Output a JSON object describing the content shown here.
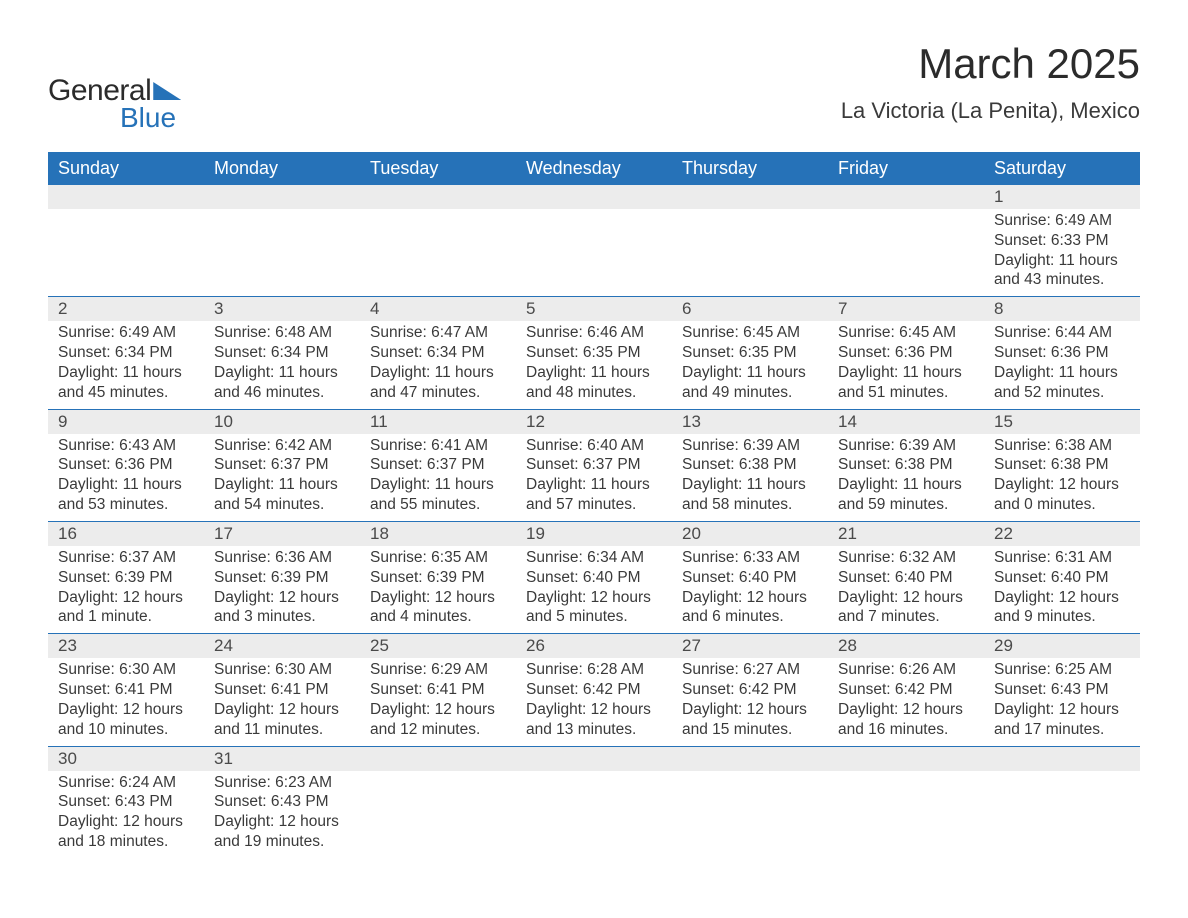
{
  "logo": {
    "word1": "General",
    "word2": "Blue"
  },
  "title": "March 2025",
  "location": "La Victoria (La Penita), Mexico",
  "colors": {
    "header_bg": "#2672b8",
    "header_text": "#ffffff",
    "band_bg": "#ececec",
    "body_text": "#3a3a3a",
    "rule": "#2672b8"
  },
  "typography": {
    "title_fontsize_pt": 32,
    "location_fontsize_pt": 17,
    "dayheader_fontsize_pt": 14,
    "daynum_fontsize_pt": 13,
    "body_fontsize_pt": 12
  },
  "day_headers": [
    "Sunday",
    "Monday",
    "Tuesday",
    "Wednesday",
    "Thursday",
    "Friday",
    "Saturday"
  ],
  "weeks": [
    [
      {
        "n": "",
        "sunrise": "",
        "sunset": "",
        "daylight": ""
      },
      {
        "n": "",
        "sunrise": "",
        "sunset": "",
        "daylight": ""
      },
      {
        "n": "",
        "sunrise": "",
        "sunset": "",
        "daylight": ""
      },
      {
        "n": "",
        "sunrise": "",
        "sunset": "",
        "daylight": ""
      },
      {
        "n": "",
        "sunrise": "",
        "sunset": "",
        "daylight": ""
      },
      {
        "n": "",
        "sunrise": "",
        "sunset": "",
        "daylight": ""
      },
      {
        "n": "1",
        "sunrise": "Sunrise: 6:49 AM",
        "sunset": "Sunset: 6:33 PM",
        "daylight": "Daylight: 11 hours and 43 minutes."
      }
    ],
    [
      {
        "n": "2",
        "sunrise": "Sunrise: 6:49 AM",
        "sunset": "Sunset: 6:34 PM",
        "daylight": "Daylight: 11 hours and 45 minutes."
      },
      {
        "n": "3",
        "sunrise": "Sunrise: 6:48 AM",
        "sunset": "Sunset: 6:34 PM",
        "daylight": "Daylight: 11 hours and 46 minutes."
      },
      {
        "n": "4",
        "sunrise": "Sunrise: 6:47 AM",
        "sunset": "Sunset: 6:34 PM",
        "daylight": "Daylight: 11 hours and 47 minutes."
      },
      {
        "n": "5",
        "sunrise": "Sunrise: 6:46 AM",
        "sunset": "Sunset: 6:35 PM",
        "daylight": "Daylight: 11 hours and 48 minutes."
      },
      {
        "n": "6",
        "sunrise": "Sunrise: 6:45 AM",
        "sunset": "Sunset: 6:35 PM",
        "daylight": "Daylight: 11 hours and 49 minutes."
      },
      {
        "n": "7",
        "sunrise": "Sunrise: 6:45 AM",
        "sunset": "Sunset: 6:36 PM",
        "daylight": "Daylight: 11 hours and 51 minutes."
      },
      {
        "n": "8",
        "sunrise": "Sunrise: 6:44 AM",
        "sunset": "Sunset: 6:36 PM",
        "daylight": "Daylight: 11 hours and 52 minutes."
      }
    ],
    [
      {
        "n": "9",
        "sunrise": "Sunrise: 6:43 AM",
        "sunset": "Sunset: 6:36 PM",
        "daylight": "Daylight: 11 hours and 53 minutes."
      },
      {
        "n": "10",
        "sunrise": "Sunrise: 6:42 AM",
        "sunset": "Sunset: 6:37 PM",
        "daylight": "Daylight: 11 hours and 54 minutes."
      },
      {
        "n": "11",
        "sunrise": "Sunrise: 6:41 AM",
        "sunset": "Sunset: 6:37 PM",
        "daylight": "Daylight: 11 hours and 55 minutes."
      },
      {
        "n": "12",
        "sunrise": "Sunrise: 6:40 AM",
        "sunset": "Sunset: 6:37 PM",
        "daylight": "Daylight: 11 hours and 57 minutes."
      },
      {
        "n": "13",
        "sunrise": "Sunrise: 6:39 AM",
        "sunset": "Sunset: 6:38 PM",
        "daylight": "Daylight: 11 hours and 58 minutes."
      },
      {
        "n": "14",
        "sunrise": "Sunrise: 6:39 AM",
        "sunset": "Sunset: 6:38 PM",
        "daylight": "Daylight: 11 hours and 59 minutes."
      },
      {
        "n": "15",
        "sunrise": "Sunrise: 6:38 AM",
        "sunset": "Sunset: 6:38 PM",
        "daylight": "Daylight: 12 hours and 0 minutes."
      }
    ],
    [
      {
        "n": "16",
        "sunrise": "Sunrise: 6:37 AM",
        "sunset": "Sunset: 6:39 PM",
        "daylight": "Daylight: 12 hours and 1 minute."
      },
      {
        "n": "17",
        "sunrise": "Sunrise: 6:36 AM",
        "sunset": "Sunset: 6:39 PM",
        "daylight": "Daylight: 12 hours and 3 minutes."
      },
      {
        "n": "18",
        "sunrise": "Sunrise: 6:35 AM",
        "sunset": "Sunset: 6:39 PM",
        "daylight": "Daylight: 12 hours and 4 minutes."
      },
      {
        "n": "19",
        "sunrise": "Sunrise: 6:34 AM",
        "sunset": "Sunset: 6:40 PM",
        "daylight": "Daylight: 12 hours and 5 minutes."
      },
      {
        "n": "20",
        "sunrise": "Sunrise: 6:33 AM",
        "sunset": "Sunset: 6:40 PM",
        "daylight": "Daylight: 12 hours and 6 minutes."
      },
      {
        "n": "21",
        "sunrise": "Sunrise: 6:32 AM",
        "sunset": "Sunset: 6:40 PM",
        "daylight": "Daylight: 12 hours and 7 minutes."
      },
      {
        "n": "22",
        "sunrise": "Sunrise: 6:31 AM",
        "sunset": "Sunset: 6:40 PM",
        "daylight": "Daylight: 12 hours and 9 minutes."
      }
    ],
    [
      {
        "n": "23",
        "sunrise": "Sunrise: 6:30 AM",
        "sunset": "Sunset: 6:41 PM",
        "daylight": "Daylight: 12 hours and 10 minutes."
      },
      {
        "n": "24",
        "sunrise": "Sunrise: 6:30 AM",
        "sunset": "Sunset: 6:41 PM",
        "daylight": "Daylight: 12 hours and 11 minutes."
      },
      {
        "n": "25",
        "sunrise": "Sunrise: 6:29 AM",
        "sunset": "Sunset: 6:41 PM",
        "daylight": "Daylight: 12 hours and 12 minutes."
      },
      {
        "n": "26",
        "sunrise": "Sunrise: 6:28 AM",
        "sunset": "Sunset: 6:42 PM",
        "daylight": "Daylight: 12 hours and 13 minutes."
      },
      {
        "n": "27",
        "sunrise": "Sunrise: 6:27 AM",
        "sunset": "Sunset: 6:42 PM",
        "daylight": "Daylight: 12 hours and 15 minutes."
      },
      {
        "n": "28",
        "sunrise": "Sunrise: 6:26 AM",
        "sunset": "Sunset: 6:42 PM",
        "daylight": "Daylight: 12 hours and 16 minutes."
      },
      {
        "n": "29",
        "sunrise": "Sunrise: 6:25 AM",
        "sunset": "Sunset: 6:43 PM",
        "daylight": "Daylight: 12 hours and 17 minutes."
      }
    ],
    [
      {
        "n": "30",
        "sunrise": "Sunrise: 6:24 AM",
        "sunset": "Sunset: 6:43 PM",
        "daylight": "Daylight: 12 hours and 18 minutes."
      },
      {
        "n": "31",
        "sunrise": "Sunrise: 6:23 AM",
        "sunset": "Sunset: 6:43 PM",
        "daylight": "Daylight: 12 hours and 19 minutes."
      },
      {
        "n": "",
        "sunrise": "",
        "sunset": "",
        "daylight": ""
      },
      {
        "n": "",
        "sunrise": "",
        "sunset": "",
        "daylight": ""
      },
      {
        "n": "",
        "sunrise": "",
        "sunset": "",
        "daylight": ""
      },
      {
        "n": "",
        "sunrise": "",
        "sunset": "",
        "daylight": ""
      },
      {
        "n": "",
        "sunrise": "",
        "sunset": "",
        "daylight": ""
      }
    ]
  ]
}
